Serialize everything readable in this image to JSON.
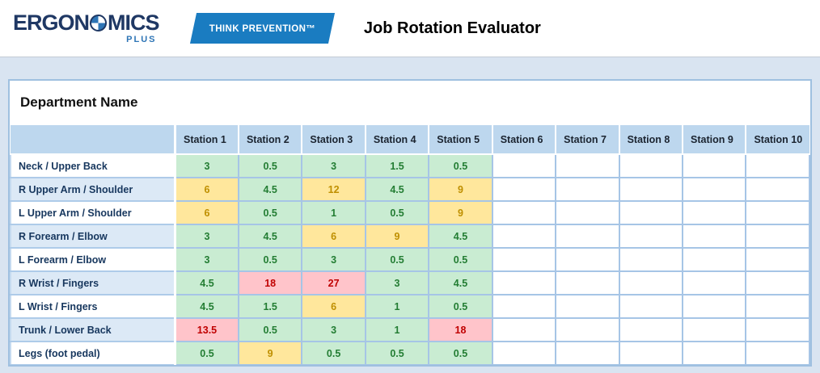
{
  "header": {
    "logo": {
      "left": "ERGON",
      "right": "MICS",
      "sub": "PLUS"
    },
    "badge": "THINK PREVENTION™",
    "title": "Job Rotation Evaluator"
  },
  "table": {
    "title": "Department Name",
    "columns": [
      "Station 1",
      "Station 2",
      "Station 3",
      "Station 4",
      "Station 5",
      "Station 6",
      "Station 7",
      "Station 8",
      "Station 9",
      "Station 10"
    ],
    "rows": [
      {
        "label": "Neck / Upper Back",
        "values": [
          {
            "v": "3",
            "level": "green"
          },
          {
            "v": "0.5",
            "level": "green"
          },
          {
            "v": "3",
            "level": "green"
          },
          {
            "v": "1.5",
            "level": "green"
          },
          {
            "v": "0.5",
            "level": "green"
          },
          {
            "v": "",
            "level": "empty"
          },
          {
            "v": "",
            "level": "empty"
          },
          {
            "v": "",
            "level": "empty"
          },
          {
            "v": "",
            "level": "empty"
          },
          {
            "v": "",
            "level": "empty"
          }
        ]
      },
      {
        "label": "R Upper Arm / Shoulder",
        "values": [
          {
            "v": "6",
            "level": "yellow"
          },
          {
            "v": "4.5",
            "level": "green"
          },
          {
            "v": "12",
            "level": "yellow"
          },
          {
            "v": "4.5",
            "level": "green"
          },
          {
            "v": "9",
            "level": "yellow"
          },
          {
            "v": "",
            "level": "empty"
          },
          {
            "v": "",
            "level": "empty"
          },
          {
            "v": "",
            "level": "empty"
          },
          {
            "v": "",
            "level": "empty"
          },
          {
            "v": "",
            "level": "empty"
          }
        ]
      },
      {
        "label": "L Upper Arm / Shoulder",
        "values": [
          {
            "v": "6",
            "level": "yellow"
          },
          {
            "v": "0.5",
            "level": "green"
          },
          {
            "v": "1",
            "level": "green"
          },
          {
            "v": "0.5",
            "level": "green"
          },
          {
            "v": "9",
            "level": "yellow"
          },
          {
            "v": "",
            "level": "empty"
          },
          {
            "v": "",
            "level": "empty"
          },
          {
            "v": "",
            "level": "empty"
          },
          {
            "v": "",
            "level": "empty"
          },
          {
            "v": "",
            "level": "empty"
          }
        ]
      },
      {
        "label": "R Forearm / Elbow",
        "values": [
          {
            "v": "3",
            "level": "green"
          },
          {
            "v": "4.5",
            "level": "green"
          },
          {
            "v": "6",
            "level": "yellow"
          },
          {
            "v": "9",
            "level": "yellow"
          },
          {
            "v": "4.5",
            "level": "green"
          },
          {
            "v": "",
            "level": "empty"
          },
          {
            "v": "",
            "level": "empty"
          },
          {
            "v": "",
            "level": "empty"
          },
          {
            "v": "",
            "level": "empty"
          },
          {
            "v": "",
            "level": "empty"
          }
        ]
      },
      {
        "label": "L Forearm / Elbow",
        "values": [
          {
            "v": "3",
            "level": "green"
          },
          {
            "v": "0.5",
            "level": "green"
          },
          {
            "v": "3",
            "level": "green"
          },
          {
            "v": "0.5",
            "level": "green"
          },
          {
            "v": "0.5",
            "level": "green"
          },
          {
            "v": "",
            "level": "empty"
          },
          {
            "v": "",
            "level": "empty"
          },
          {
            "v": "",
            "level": "empty"
          },
          {
            "v": "",
            "level": "empty"
          },
          {
            "v": "",
            "level": "empty"
          }
        ]
      },
      {
        "label": "R Wrist / Fingers",
        "values": [
          {
            "v": "4.5",
            "level": "green"
          },
          {
            "v": "18",
            "level": "red"
          },
          {
            "v": "27",
            "level": "red"
          },
          {
            "v": "3",
            "level": "green"
          },
          {
            "v": "4.5",
            "level": "green"
          },
          {
            "v": "",
            "level": "empty"
          },
          {
            "v": "",
            "level": "empty"
          },
          {
            "v": "",
            "level": "empty"
          },
          {
            "v": "",
            "level": "empty"
          },
          {
            "v": "",
            "level": "empty"
          }
        ]
      },
      {
        "label": "L Wrist / Fingers",
        "values": [
          {
            "v": "4.5",
            "level": "green"
          },
          {
            "v": "1.5",
            "level": "green"
          },
          {
            "v": "6",
            "level": "yellow"
          },
          {
            "v": "1",
            "level": "green"
          },
          {
            "v": "0.5",
            "level": "green"
          },
          {
            "v": "",
            "level": "empty"
          },
          {
            "v": "",
            "level": "empty"
          },
          {
            "v": "",
            "level": "empty"
          },
          {
            "v": "",
            "level": "empty"
          },
          {
            "v": "",
            "level": "empty"
          }
        ]
      },
      {
        "label": "Trunk / Lower Back",
        "values": [
          {
            "v": "13.5",
            "level": "red"
          },
          {
            "v": "0.5",
            "level": "green"
          },
          {
            "v": "3",
            "level": "green"
          },
          {
            "v": "1",
            "level": "green"
          },
          {
            "v": "18",
            "level": "red"
          },
          {
            "v": "",
            "level": "empty"
          },
          {
            "v": "",
            "level": "empty"
          },
          {
            "v": "",
            "level": "empty"
          },
          {
            "v": "",
            "level": "empty"
          },
          {
            "v": "",
            "level": "empty"
          }
        ]
      },
      {
        "label": "Legs (foot pedal)",
        "values": [
          {
            "v": "0.5",
            "level": "green"
          },
          {
            "v": "9",
            "level": "yellow"
          },
          {
            "v": "0.5",
            "level": "green"
          },
          {
            "v": "0.5",
            "level": "green"
          },
          {
            "v": "0.5",
            "level": "green"
          },
          {
            "v": "",
            "level": "empty"
          },
          {
            "v": "",
            "level": "empty"
          },
          {
            "v": "",
            "level": "empty"
          },
          {
            "v": "",
            "level": "empty"
          },
          {
            "v": "",
            "level": "empty"
          }
        ]
      }
    ]
  },
  "colors": {
    "page_background": "#d9e4f1",
    "badge_blue": "#1a7cc1",
    "logo_navy": "#1f3864",
    "logo_blue": "#2e75b6",
    "header_row_bg": "#bdd7ee",
    "alt_row_bg": "#dce9f6",
    "grid_border": "#a6c5e6",
    "green_bg": "#c9ecd2",
    "green_text": "#237d33",
    "yellow_bg": "#ffe79c",
    "yellow_text": "#bf8f00",
    "red_bg": "#ffc4ca",
    "red_text": "#c00000"
  }
}
